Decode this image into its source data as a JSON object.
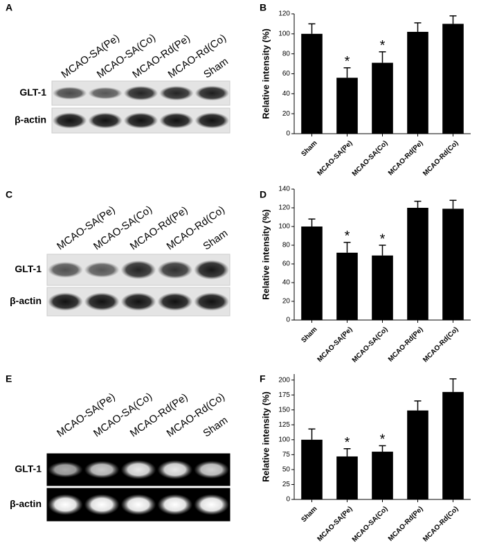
{
  "blots": [
    {
      "panel_label": "A",
      "lanes": [
        "MCAO-SA(Pe)",
        "MCAO-SA(Co)",
        "MCAO-Rd(Pe)",
        "MCAO-Rd(Co)",
        "Sham"
      ],
      "rows": [
        "GLT-1",
        "β-actin"
      ]
    },
    {
      "panel_label": "C",
      "lanes": [
        "MCAO-SA(Pe)",
        "MCAO-SA(Co)",
        "MCAO-Rd(Pe)",
        "MCAO-Rd(Co)",
        "Sham"
      ],
      "rows": [
        "GLT-1",
        "β-actin"
      ]
    },
    {
      "panel_label": "E",
      "lanes": [
        "MCAO-SA(Pe)",
        "MCAO-SA(Co)",
        "MCAO-Rd(Pe)",
        "MCAO-Rd(Co)",
        "Sham"
      ],
      "rows": [
        "GLT-1",
        "β-actin"
      ]
    }
  ],
  "chart_data": [
    {
      "type": "bar",
      "panel_label": "B",
      "ylabel": "Relative intensity (%)",
      "categories": [
        "Sham",
        "MCAO-SA(Pe)",
        "MCAO-SA(Co)",
        "MCAO-Rd(Pe)",
        "MCAO-Rd(Co)"
      ],
      "values": [
        100,
        56,
        71,
        102,
        110
      ],
      "errors": [
        10,
        10,
        11,
        9,
        8
      ],
      "markers": [
        null,
        "*",
        "*",
        null,
        null
      ],
      "color": "#000000",
      "ylim": [
        0,
        120
      ],
      "yticks": [
        0,
        20,
        40,
        60,
        80,
        100,
        120
      ]
    },
    {
      "type": "bar",
      "panel_label": "D",
      "ylabel": "Relative intensity (%)",
      "categories": [
        "Sham",
        "MCAO-SA(Pe)",
        "MCAO-SA(Co)",
        "MCAO-Rd(Pe)",
        "MCAO-Rd(Co)"
      ],
      "values": [
        100,
        72,
        69,
        120,
        119
      ],
      "errors": [
        8,
        11,
        11,
        7,
        9
      ],
      "markers": [
        null,
        "*",
        "*",
        null,
        null
      ],
      "color": "#000000",
      "ylim": [
        0,
        140
      ],
      "yticks": [
        0,
        20,
        40,
        60,
        80,
        100,
        120,
        140
      ]
    },
    {
      "type": "bar",
      "panel_label": "F",
      "ylabel": "Relative intensity (%)",
      "categories": [
        "Sham",
        "MCAO-SA(Pe)",
        "MCAO-SA(Co)",
        "MCAO-Rd(Pe)",
        "MCAO-Rd(Co)"
      ],
      "values": [
        100,
        72,
        80,
        149,
        180
      ],
      "errors": [
        18,
        13,
        10,
        16,
        22
      ],
      "markers": [
        null,
        "*",
        "*",
        null,
        null
      ],
      "color": "#000000",
      "ylim": [
        0,
        210
      ],
      "yticks": [
        0,
        25,
        50,
        75,
        100,
        125,
        150,
        175,
        200
      ]
    }
  ]
}
